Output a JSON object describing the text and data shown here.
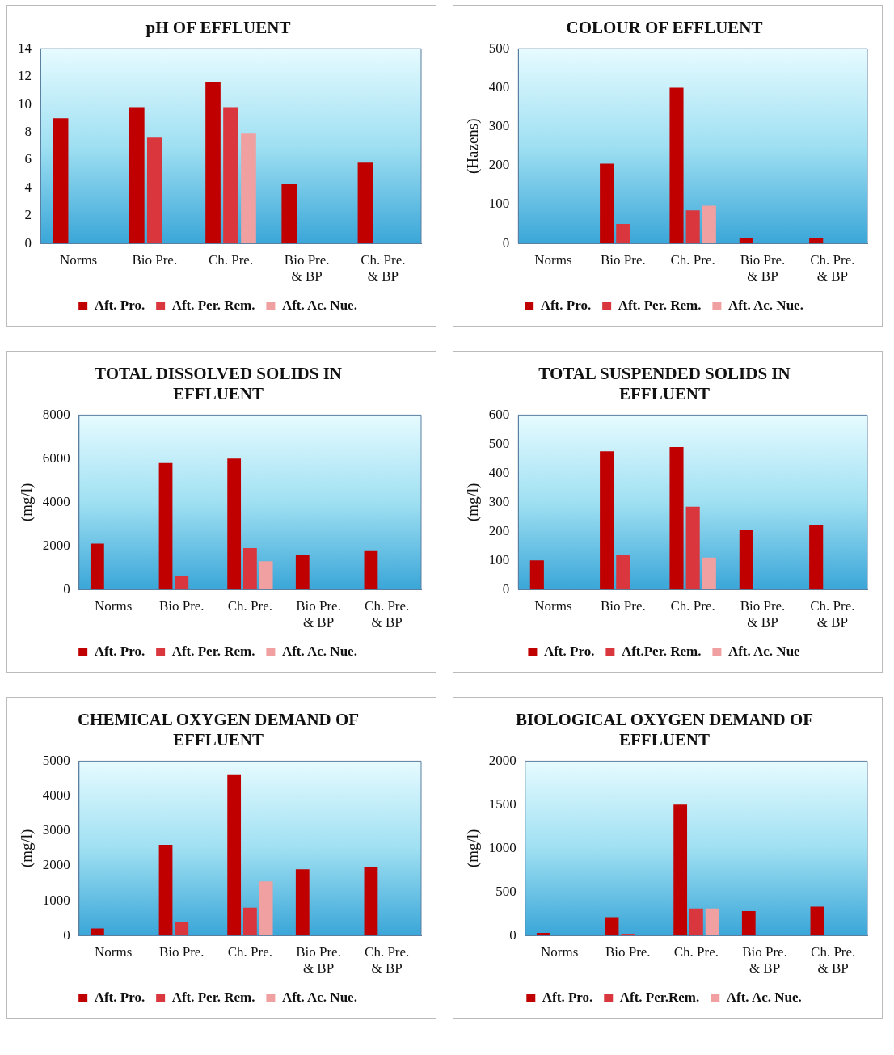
{
  "chart_data": [
    {
      "type": "bar",
      "title": "pH OF EFFLUENT",
      "categories": [
        "Norms",
        "Bio Pre.",
        "Ch. Pre.",
        "Bio Pre.\n& BP",
        "Ch. Pre.\n& BP"
      ],
      "ylim": [
        0,
        14
      ],
      "yticks": [
        0,
        2,
        4,
        6,
        8,
        10,
        12,
        14
      ],
      "grid": false,
      "legend": "bottom",
      "series": [
        {
          "name": "Aft. Pro.",
          "color": "#c00000",
          "values": [
            9,
            9.8,
            11.6,
            4.3,
            5.8
          ]
        },
        {
          "name": "Aft. Per. Rem.",
          "color": "#d9363e",
          "values": [
            null,
            7.6,
            9.8,
            null,
            null
          ]
        },
        {
          "name": "Aft. Ac. Nue.",
          "color": "#f0a0a0",
          "values": [
            null,
            null,
            7.9,
            null,
            null
          ]
        }
      ]
    },
    {
      "type": "bar",
      "title": "COLOUR OF EFFLUENT",
      "ylabel": "(Hazens)",
      "categories": [
        "Norms",
        "Bio Pre.",
        "Ch. Pre.",
        "Bio Pre.\n& BP",
        "Ch. Pre.\n& BP"
      ],
      "ylim": [
        0,
        500
      ],
      "yticks": [
        0,
        100,
        200,
        300,
        400,
        500
      ],
      "grid": false,
      "legend": "bottom",
      "series": [
        {
          "name": "Aft. Pro.",
          "color": "#c00000",
          "values": [
            null,
            205,
            400,
            15,
            15
          ]
        },
        {
          "name": "Aft. Per. Rem.",
          "color": "#d9363e",
          "values": [
            null,
            50,
            85,
            null,
            null
          ]
        },
        {
          "name": "Aft. Ac. Nue.",
          "color": "#f0a0a0",
          "values": [
            null,
            null,
            97,
            null,
            null
          ]
        }
      ]
    },
    {
      "type": "bar",
      "title": "TOTAL DISSOLVED SOLIDS IN\nEFFLUENT",
      "ylabel": "(mg/l)",
      "categories": [
        "Norms",
        "Bio Pre.",
        "Ch. Pre.",
        "Bio Pre.\n& BP",
        "Ch. Pre.\n& BP"
      ],
      "ylim": [
        0,
        8000
      ],
      "yticks": [
        0,
        2000,
        4000,
        6000,
        8000
      ],
      "grid": false,
      "legend": "bottom",
      "series": [
        {
          "name": "Aft. Pro.",
          "color": "#c00000",
          "values": [
            2100,
            5800,
            6000,
            1600,
            1800
          ]
        },
        {
          "name": "Aft. Per. Rem.",
          "color": "#d9363e",
          "values": [
            null,
            600,
            1900,
            null,
            null
          ]
        },
        {
          "name": "Aft. Ac. Nue.",
          "color": "#f0a0a0",
          "values": [
            null,
            null,
            1300,
            null,
            null
          ]
        }
      ]
    },
    {
      "type": "bar",
      "title": "TOTAL SUSPENDED SOLIDS IN\nEFFLUENT",
      "ylabel": "(mg/l)",
      "categories": [
        "Norms",
        "Bio Pre.",
        "Ch. Pre.",
        "Bio Pre.\n& BP",
        "Ch. Pre.\n& BP"
      ],
      "ylim": [
        0,
        600
      ],
      "yticks": [
        0,
        100,
        200,
        300,
        400,
        500,
        600
      ],
      "grid": false,
      "legend": "bottom",
      "series": [
        {
          "name": "Aft. Pro.",
          "color": "#c00000",
          "values": [
            100,
            475,
            490,
            205,
            220
          ]
        },
        {
          "name": "Aft.Per. Rem.",
          "color": "#d9363e",
          "values": [
            null,
            120,
            285,
            null,
            null
          ]
        },
        {
          "name": "Aft. Ac. Nue",
          "color": "#f0a0a0",
          "values": [
            null,
            null,
            110,
            null,
            null
          ]
        }
      ]
    },
    {
      "type": "bar",
      "title": "CHEMICAL OXYGEN DEMAND OF\nEFFLUENT",
      "ylabel": "(mg/l)",
      "categories": [
        "Norms",
        "Bio Pre.",
        "Ch. Pre.",
        "Bio Pre.\n& BP",
        "Ch. Pre.\n& BP"
      ],
      "ylim": [
        0,
        5000
      ],
      "yticks": [
        0,
        1000,
        2000,
        3000,
        4000,
        5000
      ],
      "grid": false,
      "legend": "bottom",
      "series": [
        {
          "name": "Aft. Pro.",
          "color": "#c00000",
          "values": [
            200,
            2600,
            4600,
            1900,
            1950
          ]
        },
        {
          "name": "Aft. Per. Rem.",
          "color": "#d9363e",
          "values": [
            null,
            400,
            800,
            null,
            null
          ]
        },
        {
          "name": "Aft. Ac. Nue.",
          "color": "#f0a0a0",
          "values": [
            null,
            null,
            1550,
            null,
            null
          ]
        }
      ]
    },
    {
      "type": "bar",
      "title": "BIOLOGICAL OXYGEN DEMAND OF\nEFFLUENT",
      "ylabel": "(mg/l)",
      "categories": [
        "Norms",
        "Bio Pre.",
        "Ch. Pre.",
        "Bio Pre.\n& BP",
        "Ch. Pre.\n& BP"
      ],
      "ylim": [
        0,
        2000
      ],
      "yticks": [
        0,
        500,
        1000,
        1500,
        2000
      ],
      "grid": false,
      "legend": "bottom",
      "series": [
        {
          "name": "Aft. Pro.",
          "color": "#c00000",
          "values": [
            30,
            210,
            1500,
            280,
            330
          ]
        },
        {
          "name": "Aft. Per.Rem.",
          "color": "#d9363e",
          "values": [
            null,
            20,
            310,
            null,
            null
          ]
        },
        {
          "name": "Aft. Ac. Nue.",
          "color": "#f0a0a0",
          "values": [
            null,
            null,
            310,
            null,
            null
          ]
        }
      ]
    }
  ]
}
